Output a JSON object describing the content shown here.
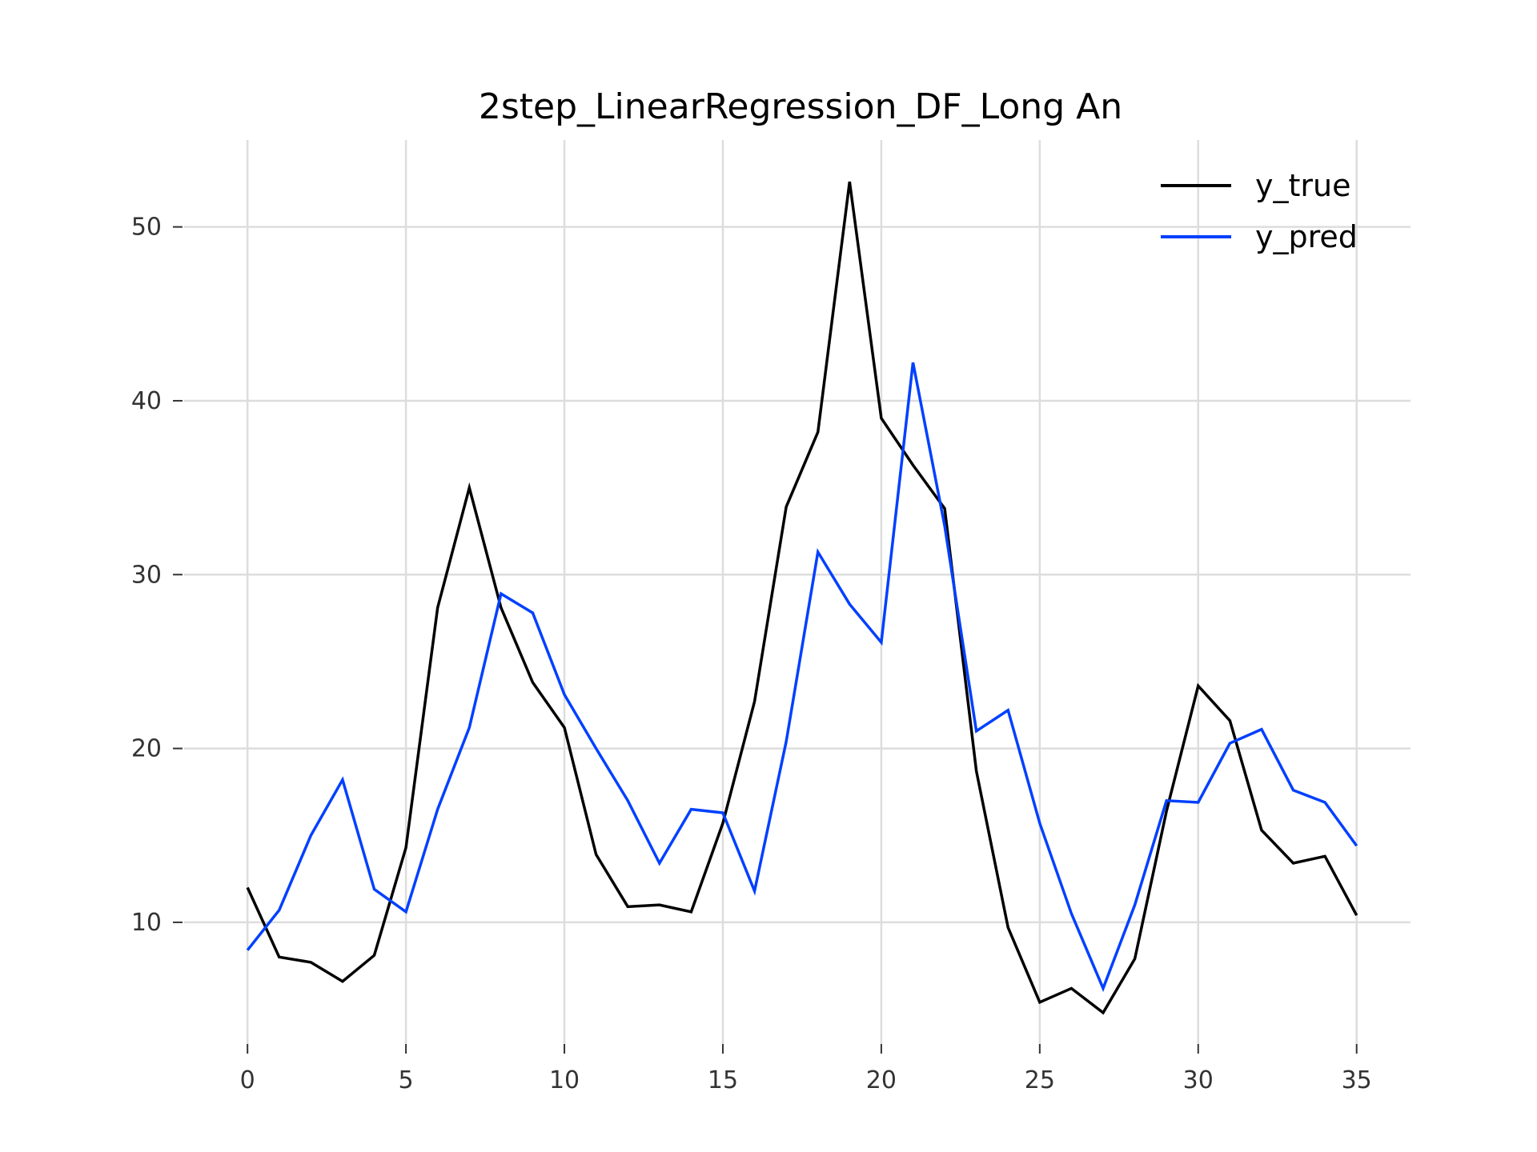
{
  "chart_data": {
    "type": "line",
    "title": "2step_LinearRegression_DF_Long An",
    "xlabel": "",
    "ylabel": "",
    "xlim": [
      -2,
      36.7
    ],
    "ylim": [
      3,
      55
    ],
    "xticks": [
      0,
      5,
      10,
      15,
      20,
      25,
      30,
      35
    ],
    "yticks": [
      10,
      20,
      30,
      40,
      50
    ],
    "grid": true,
    "legend_position": "top-right",
    "x": [
      0,
      1,
      2,
      3,
      4,
      5,
      6,
      7,
      8,
      9,
      10,
      11,
      12,
      13,
      14,
      15,
      16,
      17,
      18,
      19,
      20,
      21,
      22,
      23,
      24,
      25,
      26,
      27,
      28,
      29,
      30,
      31,
      32,
      33,
      34,
      35
    ],
    "series": [
      {
        "name": "y_true",
        "color": "#000000",
        "values": [
          12.0,
          8.0,
          7.7,
          6.6,
          8.1,
          14.3,
          28.1,
          35.0,
          28.1,
          23.8,
          21.2,
          13.9,
          10.9,
          11.0,
          10.6,
          15.7,
          22.7,
          33.9,
          38.2,
          52.6,
          39.0,
          36.3,
          33.8,
          18.7,
          9.7,
          5.4,
          6.2,
          4.8,
          7.9,
          16.4,
          23.6,
          21.6,
          15.3,
          13.4,
          13.8,
          10.4
        ]
      },
      {
        "name": "y_pred",
        "color": "#0040ff",
        "values": [
          8.4,
          10.7,
          15.0,
          18.2,
          11.9,
          10.6,
          16.5,
          21.2,
          28.9,
          27.8,
          23.1,
          20.0,
          17.0,
          13.4,
          16.5,
          16.3,
          11.8,
          20.4,
          31.3,
          28.3,
          26.1,
          42.2,
          32.8,
          21.0,
          22.2,
          15.7,
          10.5,
          6.2,
          11.0,
          17.0,
          16.9,
          20.3,
          21.1,
          17.6,
          16.9,
          14.4
        ]
      }
    ]
  }
}
